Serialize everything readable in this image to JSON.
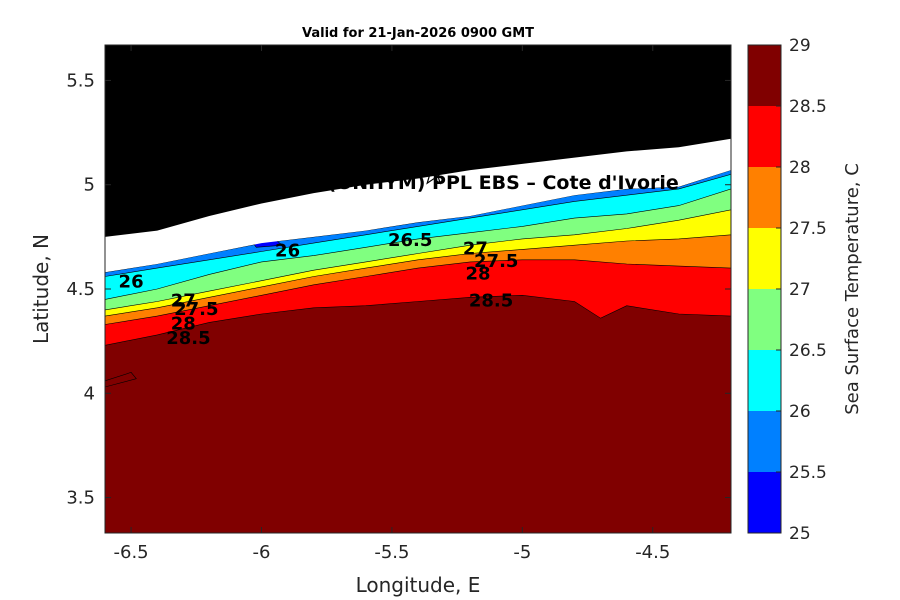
{
  "chart_data": {
    "type": "heatmap",
    "subtype": "filled-contour",
    "title": "Valid for 21-Jan-2026 0900 GMT",
    "xlabel": "Longitude, E",
    "ylabel": "Latitude, N",
    "xlim": [
      -6.6,
      -4.2
    ],
    "ylim": [
      3.33,
      5.67
    ],
    "xticks": [
      "-6.5",
      "-6",
      "-5.5",
      "-5",
      "-4.5"
    ],
    "xtick_values": [
      -6.5,
      -6,
      -5.5,
      -5,
      -4.5
    ],
    "yticks": [
      "3.5",
      "4",
      "4.5",
      "5",
      "5.5"
    ],
    "ytick_values": [
      3.5,
      4,
      4.5,
      5,
      5.5
    ],
    "colorbar": {
      "label": "Sea Surface Temperature, C",
      "ticks": [
        "25",
        "25.5",
        "26",
        "26.5",
        "27",
        "27.5",
        "28",
        "28.5",
        "29"
      ],
      "levels": [
        25,
        25.5,
        26,
        26.5,
        27,
        27.5,
        28,
        28.5,
        29
      ],
      "colors": [
        "#0000ff",
        "#0080ff",
        "#00ffff",
        "#80ff80",
        "#ffff00",
        "#ff8000",
        "#ff0000",
        "#800000"
      ]
    },
    "land_color": "#000000",
    "nodata_color": "#ffffff",
    "coastline": [
      [
        -6.6,
        4.75
      ],
      [
        -6.4,
        4.78
      ],
      [
        -6.2,
        4.85
      ],
      [
        -6.0,
        4.91
      ],
      [
        -5.8,
        4.96
      ],
      [
        -5.6,
        5.0
      ],
      [
        -5.4,
        5.03
      ],
      [
        -5.2,
        5.07
      ],
      [
        -5.0,
        5.1
      ],
      [
        -4.8,
        5.13
      ],
      [
        -4.6,
        5.16
      ],
      [
        -4.4,
        5.18
      ],
      [
        -4.2,
        5.22
      ]
    ],
    "data_edge": [
      [
        -6.6,
        4.58
      ],
      [
        -6.4,
        4.62
      ],
      [
        -6.2,
        4.67
      ],
      [
        -6.0,
        4.72
      ],
      [
        -5.8,
        4.75
      ],
      [
        -5.6,
        4.78
      ],
      [
        -5.4,
        4.82
      ],
      [
        -5.2,
        4.85
      ],
      [
        -5.0,
        4.9
      ],
      [
        -4.8,
        4.95
      ],
      [
        -4.6,
        4.98
      ],
      [
        -4.4,
        4.99
      ],
      [
        -4.2,
        5.07
      ]
    ],
    "isotherms": [
      {
        "level": 25.5,
        "points": [
          [
            -6.6,
            4.58
          ],
          [
            -6.4,
            4.62
          ],
          [
            -6.2,
            4.67
          ],
          [
            -6.0,
            4.72
          ],
          [
            -5.8,
            4.75
          ],
          [
            -5.6,
            4.78
          ],
          [
            -5.4,
            4.82
          ],
          [
            -5.2,
            4.85
          ],
          [
            -5.0,
            4.9
          ],
          [
            -4.8,
            4.95
          ],
          [
            -4.6,
            4.98
          ],
          [
            -4.4,
            4.99
          ],
          [
            -4.2,
            5.07
          ]
        ]
      },
      {
        "level": 26.0,
        "points": [
          [
            -6.6,
            4.56
          ],
          [
            -6.4,
            4.6
          ],
          [
            -6.2,
            4.64
          ],
          [
            -6.0,
            4.68
          ],
          [
            -5.8,
            4.72
          ],
          [
            -5.6,
            4.76
          ],
          [
            -5.4,
            4.8
          ],
          [
            -5.2,
            4.84
          ],
          [
            -5.0,
            4.88
          ],
          [
            -4.8,
            4.92
          ],
          [
            -4.6,
            4.95
          ],
          [
            -4.4,
            4.98
          ],
          [
            -4.2,
            5.05
          ]
        ]
      },
      {
        "level": 26.5,
        "points": [
          [
            -6.6,
            4.45
          ],
          [
            -6.4,
            4.5
          ],
          [
            -6.2,
            4.57
          ],
          [
            -6.0,
            4.63
          ],
          [
            -5.8,
            4.66
          ],
          [
            -5.6,
            4.7
          ],
          [
            -5.4,
            4.74
          ],
          [
            -5.2,
            4.77
          ],
          [
            -5.0,
            4.8
          ],
          [
            -4.8,
            4.84
          ],
          [
            -4.6,
            4.86
          ],
          [
            -4.4,
            4.9
          ],
          [
            -4.2,
            4.98
          ]
        ]
      },
      {
        "level": 27.0,
        "points": [
          [
            -6.6,
            4.4
          ],
          [
            -6.4,
            4.44
          ],
          [
            -6.2,
            4.49
          ],
          [
            -6.0,
            4.54
          ],
          [
            -5.8,
            4.59
          ],
          [
            -5.6,
            4.63
          ],
          [
            -5.4,
            4.67
          ],
          [
            -5.2,
            4.71
          ],
          [
            -5.0,
            4.74
          ],
          [
            -4.8,
            4.76
          ],
          [
            -4.6,
            4.79
          ],
          [
            -4.4,
            4.83
          ],
          [
            -4.2,
            4.88
          ]
        ]
      },
      {
        "level": 27.5,
        "points": [
          [
            -6.6,
            4.37
          ],
          [
            -6.4,
            4.41
          ],
          [
            -6.2,
            4.46
          ],
          [
            -6.0,
            4.51
          ],
          [
            -5.8,
            4.56
          ],
          [
            -5.6,
            4.6
          ],
          [
            -5.4,
            4.64
          ],
          [
            -5.2,
            4.67
          ],
          [
            -5.0,
            4.69
          ],
          [
            -4.8,
            4.71
          ],
          [
            -4.6,
            4.73
          ],
          [
            -4.4,
            4.74
          ],
          [
            -4.2,
            4.76
          ]
        ]
      },
      {
        "level": 28.0,
        "points": [
          [
            -6.6,
            4.33
          ],
          [
            -6.4,
            4.37
          ],
          [
            -6.2,
            4.42
          ],
          [
            -6.0,
            4.47
          ],
          [
            -5.8,
            4.52
          ],
          [
            -5.6,
            4.56
          ],
          [
            -5.4,
            4.6
          ],
          [
            -5.2,
            4.63
          ],
          [
            -5.0,
            4.64
          ],
          [
            -4.8,
            4.64
          ],
          [
            -4.6,
            4.62
          ],
          [
            -4.4,
            4.61
          ],
          [
            -4.2,
            4.6
          ]
        ]
      },
      {
        "level": 28.5,
        "points": [
          [
            -6.6,
            4.23
          ],
          [
            -6.4,
            4.28
          ],
          [
            -6.2,
            4.34
          ],
          [
            -6.0,
            4.38
          ],
          [
            -5.8,
            4.41
          ],
          [
            -5.6,
            4.42
          ],
          [
            -5.4,
            4.44
          ],
          [
            -5.2,
            4.46
          ],
          [
            -5.0,
            4.47
          ],
          [
            -4.8,
            4.44
          ],
          [
            -4.7,
            4.36
          ],
          [
            -4.6,
            4.42
          ],
          [
            -4.4,
            4.38
          ],
          [
            -4.2,
            4.37
          ]
        ]
      }
    ],
    "isolated_patches": [
      {
        "level": 28.5,
        "points": [
          [
            -6.6,
            4.06
          ],
          [
            -6.5,
            4.1
          ],
          [
            -6.48,
            4.07
          ],
          [
            -6.6,
            4.03
          ]
        ]
      },
      {
        "level": 25.0,
        "points": [
          [
            -6.05,
            4.75
          ],
          [
            -5.95,
            4.74
          ],
          [
            -5.92,
            4.71
          ],
          [
            -6.02,
            4.7
          ]
        ]
      }
    ],
    "contour_labels": [
      {
        "text": "26",
        "x": -6.5,
        "y": 4.53
      },
      {
        "text": "26",
        "x": -5.9,
        "y": 4.68
      },
      {
        "text": "26.5",
        "x": -5.43,
        "y": 4.73
      },
      {
        "text": "27",
        "x": -6.3,
        "y": 4.44
      },
      {
        "text": "27",
        "x": -5.18,
        "y": 4.69
      },
      {
        "text": "27.5",
        "x": -6.25,
        "y": 4.4
      },
      {
        "text": "27.5",
        "x": -5.1,
        "y": 4.63
      },
      {
        "text": "28",
        "x": -6.3,
        "y": 4.33
      },
      {
        "text": "28",
        "x": -5.17,
        "y": 4.57
      },
      {
        "text": "28.5",
        "x": -6.28,
        "y": 4.26
      },
      {
        "text": "28.5",
        "x": -5.12,
        "y": 4.44
      }
    ],
    "marker": {
      "symbol": "star",
      "x": -5.34,
      "y": 5.05
    },
    "annotation": {
      "text": "…(ONHYM) PPL EBS  – Cote d'Ivorie",
      "x": -5.82,
      "y": 4.98
    }
  }
}
